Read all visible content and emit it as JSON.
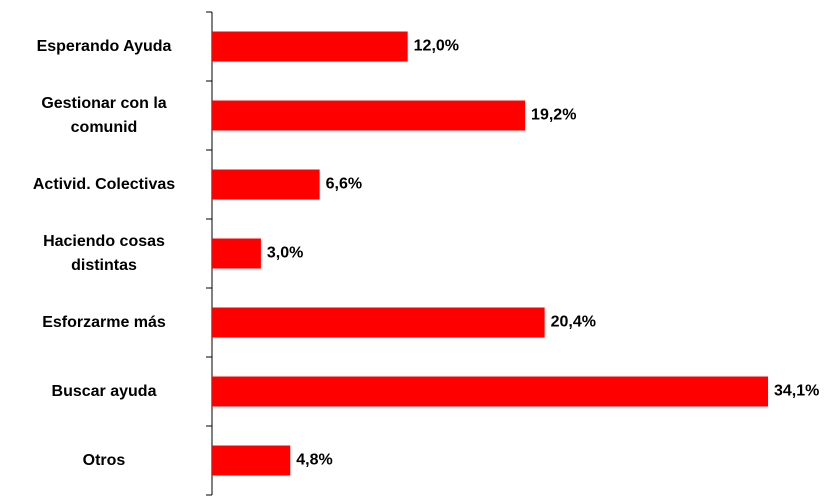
{
  "chart_data": {
    "type": "bar",
    "orientation": "horizontal",
    "categories": [
      "Esperando Ayuda",
      "Gestionar con la comunid",
      "Activid. Colectivas",
      "Haciendo cosas distintas",
      "Esforzarme más",
      "Buscar ayuda",
      "Otros"
    ],
    "values": [
      12.0,
      19.2,
      6.6,
      3.0,
      20.4,
      34.1,
      4.8
    ],
    "value_labels": [
      "12,0%",
      "19,2%",
      "6,6%",
      "3,0%",
      "20,4%",
      "34,1%",
      "4,8%"
    ],
    "color": "#ff0000"
  }
}
